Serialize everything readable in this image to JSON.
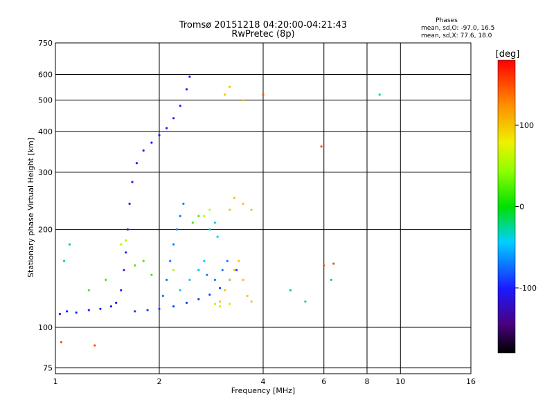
{
  "chart_data": {
    "type": "scatter",
    "title": "Tromsø 20151218 04:20:00-04:21:43",
    "subtitle": "RwPretec (8p)",
    "xlabel": "Frequency [MHz]",
    "ylabel": "Stationary phase Virtual Height [km]",
    "x_scale": "log",
    "y_scale": "log",
    "xlim": [
      1,
      16
    ],
    "ylim": [
      72,
      750
    ],
    "x_ticks": [
      1,
      2,
      4,
      6,
      8,
      10,
      16
    ],
    "y_ticks": [
      75,
      100,
      200,
      300,
      400,
      500,
      600,
      750
    ],
    "grid": true,
    "stats": {
      "heading": "Phases",
      "line_o": "mean, sd,O: -97.0, 16.5",
      "line_x": "mean, sd,X:  77.6, 18.0"
    },
    "colorbar": {
      "label": "[deg]",
      "range": [
        -180,
        180
      ],
      "ticks": [
        100,
        0,
        -100
      ],
      "tick_labels": [
        "100",
        "0",
        "-100"
      ]
    },
    "trace_groups": [
      {
        "phase": -100,
        "points": [
          [
            1.03,
            110
          ],
          [
            1.08,
            112
          ],
          [
            1.15,
            111
          ],
          [
            1.25,
            113
          ],
          [
            1.35,
            114
          ],
          [
            1.45,
            116
          ],
          [
            1.5,
            119
          ],
          [
            1.55,
            130
          ],
          [
            1.58,
            150
          ],
          [
            1.6,
            170
          ],
          [
            1.62,
            200
          ],
          [
            1.64,
            240
          ],
          [
            1.67,
            280
          ],
          [
            1.72,
            320
          ],
          [
            1.8,
            350
          ],
          [
            1.9,
            370
          ],
          [
            2.0,
            390
          ],
          [
            2.1,
            410
          ],
          [
            2.2,
            440
          ],
          [
            2.3,
            480
          ],
          [
            2.4,
            540
          ],
          [
            2.45,
            590
          ]
        ]
      },
      {
        "phase": -90,
        "points": [
          [
            1.7,
            112
          ],
          [
            1.85,
            113
          ],
          [
            2.0,
            114
          ],
          [
            2.2,
            116
          ],
          [
            2.4,
            119
          ],
          [
            2.6,
            122
          ],
          [
            2.8,
            126
          ],
          [
            3.0,
            132
          ],
          [
            3.2,
            140
          ],
          [
            3.35,
            150
          ]
        ]
      },
      {
        "phase": -70,
        "points": [
          [
            2.05,
            125
          ],
          [
            2.1,
            140
          ],
          [
            2.15,
            160
          ],
          [
            2.2,
            180
          ],
          [
            2.25,
            200
          ],
          [
            2.3,
            220
          ],
          [
            2.35,
            240
          ],
          [
            2.6,
            150
          ],
          [
            2.75,
            145
          ],
          [
            2.9,
            140
          ],
          [
            3.05,
            150
          ],
          [
            3.15,
            160
          ]
        ]
      },
      {
        "phase": -40,
        "points": [
          [
            2.3,
            130
          ],
          [
            2.45,
            140
          ],
          [
            2.6,
            150
          ],
          [
            2.7,
            160
          ],
          [
            2.8,
            200
          ],
          [
            2.9,
            210
          ],
          [
            2.95,
            190
          ]
        ]
      },
      {
        "phase": 100,
        "points": [
          [
            3.0,
            120
          ],
          [
            3.1,
            130
          ],
          [
            3.2,
            140
          ],
          [
            3.3,
            150
          ],
          [
            3.4,
            160
          ],
          [
            3.5,
            140
          ],
          [
            3.6,
            125
          ],
          [
            3.7,
            120
          ],
          [
            3.2,
            230
          ],
          [
            3.3,
            250
          ],
          [
            3.5,
            240
          ],
          [
            3.7,
            230
          ],
          [
            3.1,
            520
          ],
          [
            3.2,
            550
          ],
          [
            3.5,
            500
          ]
        ]
      },
      {
        "phase": 60,
        "points": [
          [
            2.9,
            118
          ],
          [
            3.0,
            116
          ],
          [
            3.2,
            118
          ],
          [
            2.7,
            220
          ],
          [
            2.8,
            230
          ],
          [
            1.55,
            180
          ],
          [
            1.6,
            185
          ],
          [
            2.2,
            150
          ]
        ]
      },
      {
        "phase": 20,
        "points": [
          [
            1.25,
            130
          ],
          [
            1.4,
            140
          ],
          [
            1.7,
            155
          ],
          [
            1.8,
            160
          ],
          [
            1.9,
            145
          ],
          [
            2.5,
            210
          ],
          [
            2.6,
            220
          ]
        ]
      },
      {
        "phase": -20,
        "points": [
          [
            1.06,
            160
          ],
          [
            1.1,
            180
          ],
          [
            4.8,
            130
          ],
          [
            5.3,
            120
          ],
          [
            6.3,
            140
          ],
          [
            8.7,
            520
          ]
        ]
      },
      {
        "phase": 150,
        "points": [
          [
            1.3,
            88
          ],
          [
            6.0,
            155
          ],
          [
            6.4,
            157
          ],
          [
            1.04,
            90
          ],
          [
            5.9,
            360
          ],
          [
            4.0,
            520
          ]
        ]
      }
    ]
  }
}
